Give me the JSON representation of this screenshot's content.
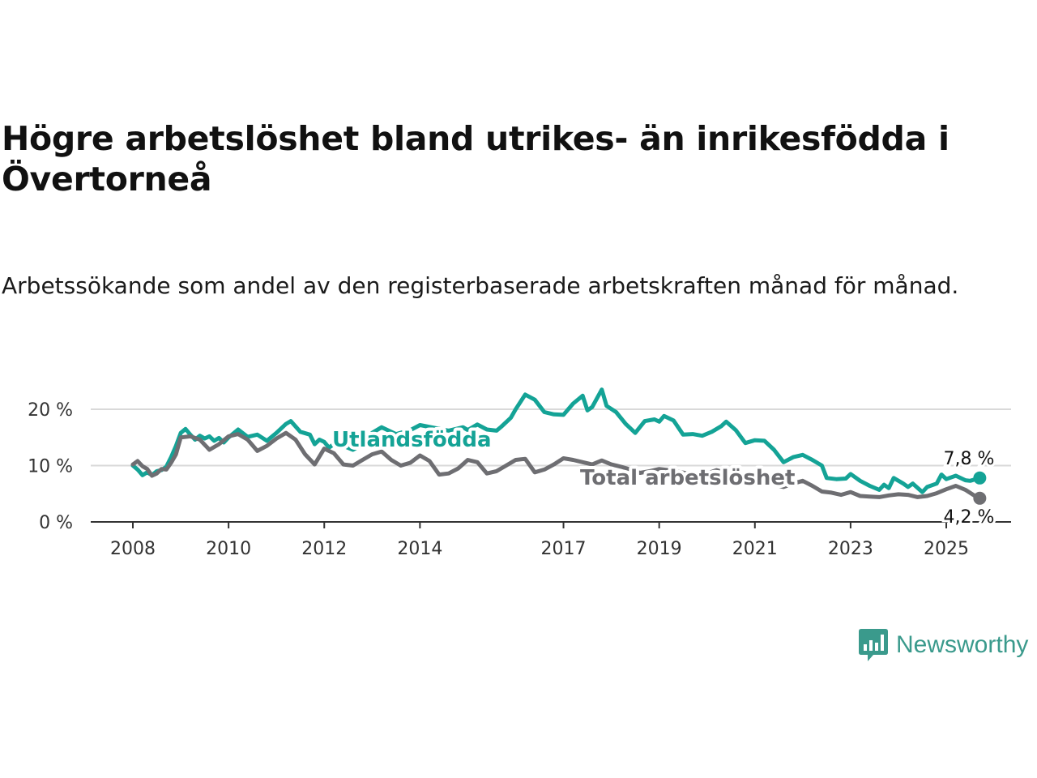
{
  "title": "Högre arbetslöshet bland utrikes- än inrikesfödda i Övertorneå",
  "subtitle": "Arbetssökande som andel av den registerbaserade arbetskraften månad för månad.",
  "brand": {
    "name": "Newsworthy",
    "color": "#3a9a8c"
  },
  "chart_data": {
    "type": "line",
    "y_ticks": [
      {
        "value": 0,
        "label": "0 %"
      },
      {
        "value": 10,
        "label": "10 %"
      },
      {
        "value": 20,
        "label": "20 %"
      }
    ],
    "x_ticks": [
      {
        "value": 2008,
        "label": "2008"
      },
      {
        "value": 2010,
        "label": "2010"
      },
      {
        "value": 2012,
        "label": "2012"
      },
      {
        "value": 2014,
        "label": "2014"
      },
      {
        "value": 2017,
        "label": "2017"
      },
      {
        "value": 2019,
        "label": "2019"
      },
      {
        "value": 2021,
        "label": "2021"
      },
      {
        "value": 2023,
        "label": "2023"
      },
      {
        "value": 2025,
        "label": "2025"
      }
    ],
    "xlim": [
      2007.8,
      2026.3
    ],
    "ylim": [
      0,
      22
    ],
    "grid": "horizontal",
    "series": [
      {
        "name": "Utlandsfödda",
        "color": "#14a396",
        "end_label": "7,8 %",
        "points": [
          [
            2008.0,
            10.0
          ],
          [
            2008.1,
            9.3
          ],
          [
            2008.2,
            8.3
          ],
          [
            2008.3,
            8.8
          ],
          [
            2008.4,
            8.3
          ],
          [
            2008.5,
            9.0
          ],
          [
            2008.6,
            9.2
          ],
          [
            2008.7,
            9.8
          ],
          [
            2008.8,
            11.5
          ],
          [
            2008.9,
            13.5
          ],
          [
            2009.0,
            15.8
          ],
          [
            2009.1,
            16.5
          ],
          [
            2009.2,
            15.5
          ],
          [
            2009.3,
            14.6
          ],
          [
            2009.4,
            15.3
          ],
          [
            2009.5,
            14.8
          ],
          [
            2009.6,
            15.2
          ],
          [
            2009.7,
            14.4
          ],
          [
            2009.8,
            14.9
          ],
          [
            2009.9,
            14.1
          ],
          [
            2010.0,
            15.0
          ],
          [
            2010.2,
            16.4
          ],
          [
            2010.4,
            15.1
          ],
          [
            2010.6,
            15.5
          ],
          [
            2010.8,
            14.4
          ],
          [
            2011.0,
            15.8
          ],
          [
            2011.2,
            17.4
          ],
          [
            2011.3,
            17.9
          ],
          [
            2011.5,
            16.0
          ],
          [
            2011.7,
            15.5
          ],
          [
            2011.8,
            13.8
          ],
          [
            2011.9,
            14.6
          ],
          [
            2012.0,
            14.2
          ],
          [
            2012.1,
            13.2
          ],
          [
            2012.2,
            13.8
          ],
          [
            2012.4,
            13.5
          ],
          [
            2012.6,
            12.8
          ],
          [
            2012.8,
            13.8
          ],
          [
            2013.0,
            15.8
          ],
          [
            2013.2,
            16.8
          ],
          [
            2013.5,
            15.6
          ],
          [
            2013.8,
            16.3
          ],
          [
            2014.0,
            17.2
          ],
          [
            2014.3,
            16.7
          ],
          [
            2014.6,
            16.2
          ],
          [
            2014.9,
            16.8
          ],
          [
            2015.0,
            16.3
          ],
          [
            2015.2,
            17.3
          ],
          [
            2015.4,
            16.4
          ],
          [
            2015.6,
            16.2
          ],
          [
            2015.7,
            16.9
          ],
          [
            2015.9,
            18.5
          ],
          [
            2016.0,
            20.0
          ],
          [
            2016.2,
            22.6
          ],
          [
            2016.4,
            21.7
          ],
          [
            2016.6,
            19.5
          ],
          [
            2016.8,
            19.1
          ],
          [
            2017.0,
            19.0
          ],
          [
            2017.2,
            21.0
          ],
          [
            2017.4,
            22.4
          ],
          [
            2017.5,
            19.8
          ],
          [
            2017.6,
            20.4
          ],
          [
            2017.8,
            23.5
          ],
          [
            2017.9,
            20.6
          ],
          [
            2018.1,
            19.5
          ],
          [
            2018.3,
            17.4
          ],
          [
            2018.5,
            15.8
          ],
          [
            2018.7,
            17.9
          ],
          [
            2018.9,
            18.2
          ],
          [
            2019.0,
            17.8
          ],
          [
            2019.1,
            18.8
          ],
          [
            2019.3,
            18.0
          ],
          [
            2019.5,
            15.5
          ],
          [
            2019.7,
            15.6
          ],
          [
            2019.9,
            15.3
          ],
          [
            2020.1,
            16.0
          ],
          [
            2020.3,
            17.0
          ],
          [
            2020.4,
            17.8
          ],
          [
            2020.6,
            16.3
          ],
          [
            2020.8,
            14.0
          ],
          [
            2021.0,
            14.5
          ],
          [
            2021.2,
            14.4
          ],
          [
            2021.4,
            12.8
          ],
          [
            2021.6,
            10.6
          ],
          [
            2021.8,
            11.5
          ],
          [
            2022.0,
            11.9
          ],
          [
            2022.2,
            11.0
          ],
          [
            2022.4,
            10.0
          ],
          [
            2022.5,
            7.8
          ],
          [
            2022.7,
            7.6
          ],
          [
            2022.9,
            7.7
          ],
          [
            2023.0,
            8.5
          ],
          [
            2023.2,
            7.3
          ],
          [
            2023.4,
            6.4
          ],
          [
            2023.6,
            5.7
          ],
          [
            2023.7,
            6.6
          ],
          [
            2023.8,
            6.0
          ],
          [
            2023.9,
            7.8
          ],
          [
            2024.1,
            6.8
          ],
          [
            2024.2,
            6.2
          ],
          [
            2024.3,
            6.8
          ],
          [
            2024.5,
            5.3
          ],
          [
            2024.6,
            6.2
          ],
          [
            2024.8,
            6.8
          ],
          [
            2024.9,
            8.4
          ],
          [
            2025.0,
            7.6
          ],
          [
            2025.2,
            8.2
          ],
          [
            2025.4,
            7.4
          ],
          [
            2025.5,
            7.3
          ],
          [
            2025.7,
            7.8
          ]
        ]
      },
      {
        "name": "Total arbetslöshet",
        "color": "#6e6e72",
        "end_label": "4,2 %",
        "points": [
          [
            2008.0,
            10.2
          ],
          [
            2008.1,
            10.8
          ],
          [
            2008.2,
            9.9
          ],
          [
            2008.3,
            9.4
          ],
          [
            2008.4,
            8.2
          ],
          [
            2008.5,
            8.6
          ],
          [
            2008.6,
            9.4
          ],
          [
            2008.7,
            9.3
          ],
          [
            2008.8,
            10.5
          ],
          [
            2008.9,
            12.0
          ],
          [
            2009.0,
            15.0
          ],
          [
            2009.2,
            15.2
          ],
          [
            2009.4,
            14.6
          ],
          [
            2009.6,
            12.8
          ],
          [
            2009.8,
            13.8
          ],
          [
            2010.0,
            15.2
          ],
          [
            2010.2,
            15.6
          ],
          [
            2010.4,
            14.6
          ],
          [
            2010.6,
            12.6
          ],
          [
            2010.8,
            13.5
          ],
          [
            2011.0,
            14.8
          ],
          [
            2011.2,
            15.8
          ],
          [
            2011.4,
            14.6
          ],
          [
            2011.6,
            12.0
          ],
          [
            2011.8,
            10.2
          ],
          [
            2012.0,
            13.0
          ],
          [
            2012.2,
            12.2
          ],
          [
            2012.4,
            10.2
          ],
          [
            2012.6,
            10.0
          ],
          [
            2012.8,
            11.0
          ],
          [
            2013.0,
            12.0
          ],
          [
            2013.2,
            12.5
          ],
          [
            2013.4,
            11.0
          ],
          [
            2013.6,
            10.0
          ],
          [
            2013.8,
            10.5
          ],
          [
            2014.0,
            11.8
          ],
          [
            2014.2,
            10.8
          ],
          [
            2014.4,
            8.4
          ],
          [
            2014.6,
            8.6
          ],
          [
            2014.8,
            9.5
          ],
          [
            2015.0,
            11.0
          ],
          [
            2015.2,
            10.6
          ],
          [
            2015.4,
            8.6
          ],
          [
            2015.6,
            9.0
          ],
          [
            2015.8,
            10.0
          ],
          [
            2016.0,
            11.0
          ],
          [
            2016.2,
            11.2
          ],
          [
            2016.4,
            8.8
          ],
          [
            2016.6,
            9.3
          ],
          [
            2016.8,
            10.2
          ],
          [
            2017.0,
            11.3
          ],
          [
            2017.2,
            11.0
          ],
          [
            2017.4,
            10.6
          ],
          [
            2017.6,
            10.2
          ],
          [
            2017.8,
            10.9
          ],
          [
            2018.0,
            10.2
          ],
          [
            2018.2,
            9.8
          ],
          [
            2018.4,
            9.3
          ],
          [
            2018.6,
            8.7
          ],
          [
            2018.8,
            9.0
          ],
          [
            2019.0,
            9.4
          ],
          [
            2019.2,
            9.2
          ],
          [
            2019.4,
            8.9
          ],
          [
            2019.6,
            8.6
          ],
          [
            2019.8,
            8.3
          ],
          [
            2020.0,
            8.6
          ],
          [
            2020.2,
            9.2
          ],
          [
            2020.4,
            8.7
          ],
          [
            2020.6,
            8.2
          ],
          [
            2020.8,
            7.8
          ],
          [
            2021.0,
            7.6
          ],
          [
            2021.2,
            7.3
          ],
          [
            2021.4,
            6.6
          ],
          [
            2021.6,
            6.2
          ],
          [
            2021.8,
            6.8
          ],
          [
            2022.0,
            7.3
          ],
          [
            2022.2,
            6.4
          ],
          [
            2022.4,
            5.4
          ],
          [
            2022.6,
            5.2
          ],
          [
            2022.8,
            4.8
          ],
          [
            2023.0,
            5.3
          ],
          [
            2023.2,
            4.6
          ],
          [
            2023.4,
            4.5
          ],
          [
            2023.6,
            4.4
          ],
          [
            2023.8,
            4.7
          ],
          [
            2024.0,
            4.9
          ],
          [
            2024.2,
            4.8
          ],
          [
            2024.4,
            4.4
          ],
          [
            2024.6,
            4.6
          ],
          [
            2024.8,
            5.1
          ],
          [
            2025.0,
            5.8
          ],
          [
            2025.2,
            6.4
          ],
          [
            2025.4,
            5.7
          ],
          [
            2025.6,
            4.6
          ],
          [
            2025.7,
            4.2
          ]
        ]
      }
    ]
  }
}
